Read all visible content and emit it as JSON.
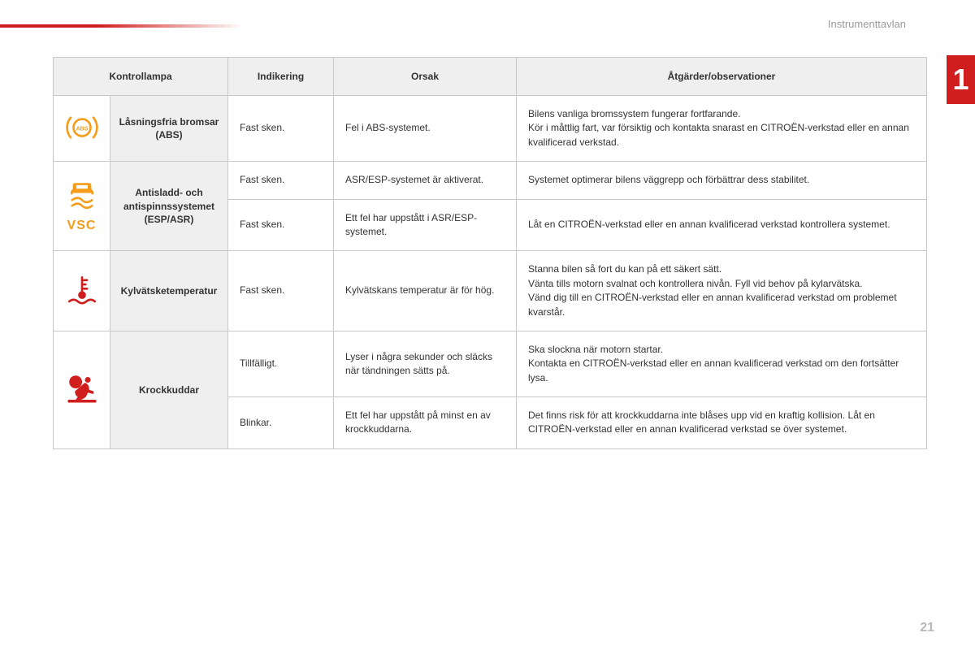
{
  "page": {
    "section_label": "Instrumenttavlan",
    "chapter_number": "1",
    "page_number": "21"
  },
  "colors": {
    "accent_red": "#d01e1e",
    "icon_orange": "#f59c1a",
    "icon_red": "#d01e1e",
    "header_bg": "#efefef",
    "border": "#c8c8c8",
    "muted_text": "#9a9a9a"
  },
  "table": {
    "headers": {
      "lamp": "Kontrollampa",
      "indication": "Indikering",
      "cause": "Orsak",
      "actions": "Åtgärder/observationer"
    },
    "rows": {
      "abs": {
        "name": "Låsningsfria bromsar (ABS)",
        "indication": "Fast sken.",
        "cause": "Fel i ABS-systemet.",
        "actions": "Bilens vanliga bromssystem fungerar fortfarande.\nKör i måttlig fart, var försiktig och kontakta snarast en CITROËN-verkstad eller en annan kvalificerad verkstad."
      },
      "esp": {
        "name": "Antisladd- och antispinnssystemet (ESP/ASR)",
        "vsc_label": "VSC",
        "r1": {
          "indication": "Fast sken.",
          "cause": "ASR/ESP-systemet är aktiverat.",
          "actions": "Systemet optimerar bilens väggrepp och förbättrar dess stabilitet."
        },
        "r2": {
          "indication": "Fast sken.",
          "cause": "Ett fel har uppstått i ASR/ESP-systemet.",
          "actions": "Låt en CITROËN-verkstad eller en annan kvalificerad verkstad kontrollera systemet."
        }
      },
      "coolant": {
        "name": "Kylvätsketemperatur",
        "indication": "Fast sken.",
        "cause": "Kylvätskans temperatur är för hög.",
        "actions": "Stanna bilen så fort du kan på ett säkert sätt.\nVänta tills motorn svalnat och kontrollera nivån. Fyll vid behov på kylarvätska.\nVänd dig till en CITROËN-verkstad eller en annan kvalificerad verkstad om problemet kvarstår."
      },
      "airbag": {
        "name": "Krockkuddar",
        "r1": {
          "indication": "Tillfälligt.",
          "cause": "Lyser i några sekunder och släcks när tändningen sätts på.",
          "actions": "Ska slockna när motorn startar.\nKontakta en CITROËN-verkstad eller en annan kvalificerad verkstad om den fortsätter lysa."
        },
        "r2": {
          "indication": "Blinkar.",
          "cause": "Ett fel har uppstått på minst en av krockkuddarna.",
          "actions": "Det finns risk för att krockkuddarna inte blåses upp vid en kraftig kollision. Låt en CITROËN-verkstad eller en annan kvalificerad verkstad se över systemet."
        }
      }
    }
  }
}
